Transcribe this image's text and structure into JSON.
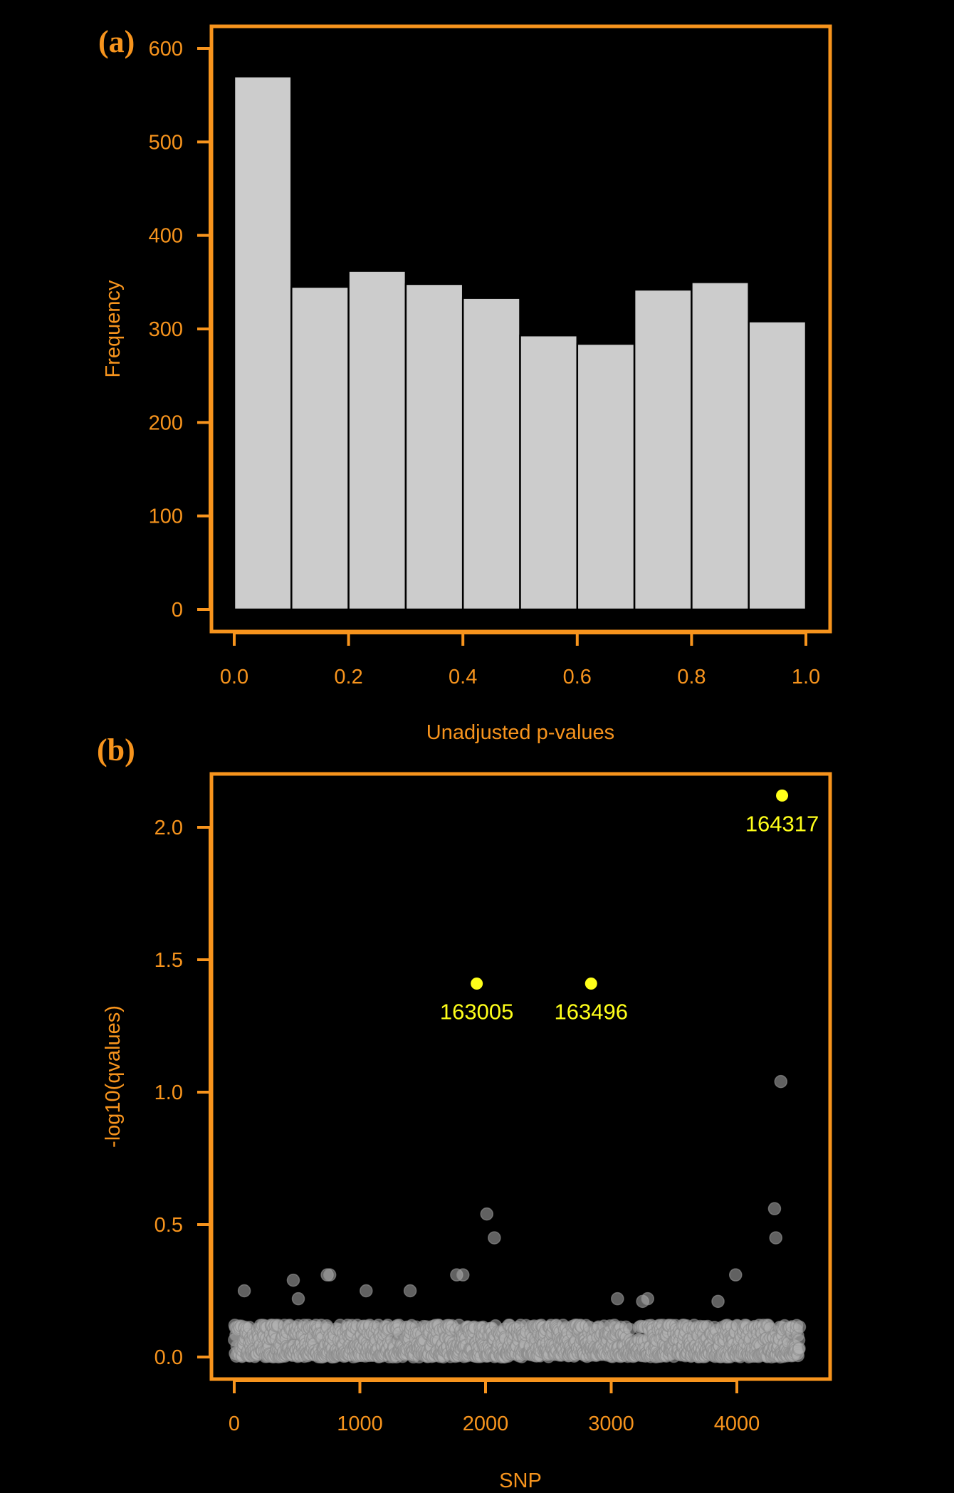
{
  "colors": {
    "background": "#000000",
    "axis": "#f7941d",
    "bar_fill": "#cccccc",
    "bar_stroke": "#000000",
    "point": "#b0b0b0",
    "highlight": "#ffff1a"
  },
  "chart_data": [
    {
      "panel_label": "(a)",
      "type": "bar",
      "title": "",
      "xlabel": "Unadjusted p-values",
      "ylabel": "Frequency",
      "xlim": [
        0,
        1
      ],
      "ylim": [
        0,
        600
      ],
      "xticks": [
        "0.0",
        "0.2",
        "0.4",
        "0.6",
        "0.8",
        "1.0"
      ],
      "yticks": [
        "0",
        "100",
        "200",
        "300",
        "400",
        "500",
        "600"
      ],
      "bin_edges": [
        0.0,
        0.1,
        0.2,
        0.3,
        0.4,
        0.5,
        0.6,
        0.7,
        0.8,
        0.9,
        1.0
      ],
      "values": [
        570,
        345,
        362,
        348,
        333,
        293,
        284,
        342,
        350,
        308
      ],
      "grid": false
    },
    {
      "panel_label": "(b)",
      "type": "scatter",
      "title": "",
      "xlabel": "SNP",
      "ylabel": "-log10(qvalues)",
      "xlim": [
        0,
        4500
      ],
      "ylim": [
        0,
        2.12
      ],
      "xticks": [
        "0",
        "1000",
        "2000",
        "3000",
        "4000"
      ],
      "yticks": [
        "0.0",
        "0.5",
        "1.0",
        "1.5",
        "2.0"
      ],
      "grid": false,
      "n_snps": 4500,
      "baseline_band": {
        "y_min": 0.0,
        "y_max": 0.12
      },
      "points": [
        {
          "x": 80,
          "y": 0.25
        },
        {
          "x": 470,
          "y": 0.29
        },
        {
          "x": 510,
          "y": 0.22
        },
        {
          "x": 740,
          "y": 0.31
        },
        {
          "x": 760,
          "y": 0.31
        },
        {
          "x": 1050,
          "y": 0.25
        },
        {
          "x": 1400,
          "y": 0.25
        },
        {
          "x": 1770,
          "y": 0.31
        },
        {
          "x": 1820,
          "y": 0.31
        },
        {
          "x": 2010,
          "y": 0.54
        },
        {
          "x": 2070,
          "y": 0.45
        },
        {
          "x": 3050,
          "y": 0.22
        },
        {
          "x": 3250,
          "y": 0.21
        },
        {
          "x": 3290,
          "y": 0.22
        },
        {
          "x": 3850,
          "y": 0.21
        },
        {
          "x": 3990,
          "y": 0.31
        },
        {
          "x": 4300,
          "y": 0.56
        },
        {
          "x": 4310,
          "y": 0.45
        },
        {
          "x": 4350,
          "y": 1.04
        }
      ],
      "highlighted": [
        {
          "x": 1930,
          "y": 1.41,
          "label": "163005"
        },
        {
          "x": 2840,
          "y": 1.41,
          "label": "163496"
        },
        {
          "x": 4360,
          "y": 2.12,
          "label": "164317"
        }
      ]
    }
  ]
}
